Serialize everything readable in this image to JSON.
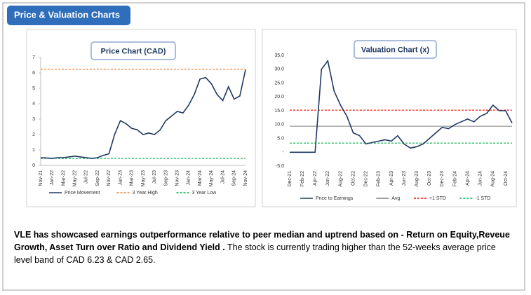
{
  "header": {
    "title": "Price & Valuation Charts"
  },
  "chart_data": [
    {
      "type": "line",
      "title": "Price Chart (CAD)",
      "categories": [
        "Nov-21",
        null,
        "Jan-22",
        null,
        "Mar-22",
        null,
        "May-22",
        null,
        "Jul-22",
        null,
        "Sep-22",
        null,
        "Nov-22",
        null,
        "Jan-23",
        null,
        "Mar-23",
        null,
        "May-23",
        null,
        "Jul-23",
        null,
        "Sep-23",
        null,
        "Nov-23",
        null,
        "Jan-24",
        null,
        "Mar-24",
        null,
        "May-24",
        null,
        "Jul-24",
        null,
        "Sep-24",
        null,
        "Nov-24"
      ],
      "series": [
        {
          "name": "Price Movement",
          "color": "#1f3864",
          "values": [
            0.5,
            0.48,
            0.45,
            0.5,
            0.5,
            0.55,
            0.6,
            0.55,
            0.5,
            0.45,
            0.5,
            0.65,
            0.75,
            2.0,
            2.9,
            2.7,
            2.4,
            2.3,
            2.0,
            2.1,
            2.0,
            2.3,
            2.9,
            3.2,
            3.5,
            3.4,
            3.9,
            4.6,
            5.6,
            5.7,
            5.3,
            4.6,
            4.2,
            5.1,
            4.3,
            4.5,
            6.2
          ]
        }
      ],
      "reference_lines": [
        {
          "name": "3 Year High",
          "value": 6.23,
          "color": "#ed7d31",
          "dashed": true
        },
        {
          "name": "3 Year Low",
          "value": 0.45,
          "color": "#00b050",
          "dashed": true
        }
      ],
      "ylim": [
        0,
        7
      ],
      "yticks": [
        0,
        1,
        2,
        3,
        4,
        5,
        6,
        7
      ]
    },
    {
      "type": "line",
      "title": "Valuation Chart (x)",
      "categories": [
        "Dec-21",
        null,
        "Feb-22",
        null,
        "Apr-22",
        null,
        "Jun-22",
        null,
        "Aug-22",
        null,
        "Oct-22",
        null,
        "Dec-22",
        null,
        "Feb-23",
        null,
        "Apr-23",
        null,
        "Jun-23",
        null,
        "Aug-23",
        null,
        "Oct-23",
        null,
        "Dec-23",
        null,
        "Feb-24",
        null,
        "Apr-24",
        null,
        "Jun-24",
        null,
        "Aug-24",
        null,
        "Oct-24",
        null
      ],
      "series": [
        {
          "name": "Price to Earnings",
          "color": "#1f3864",
          "values": [
            0,
            0,
            0,
            0,
            0,
            30,
            33,
            22,
            17,
            13,
            7,
            6,
            3,
            3.5,
            4,
            4.5,
            4,
            6,
            3,
            1.5,
            2,
            3,
            5,
            7,
            9,
            8.5,
            10,
            11,
            12,
            11,
            13,
            14,
            17,
            15,
            15,
            10.5
          ]
        }
      ],
      "reference_lines": [
        {
          "name": "Avg",
          "value": 9.4,
          "color": "#7f7f7f",
          "dashed": false
        },
        {
          "name": "+1 STD",
          "value": 15.2,
          "color": "#ff0000",
          "dashed": true
        },
        {
          "name": "-1 STD",
          "value": 3.3,
          "color": "#00b050",
          "dashed": true
        }
      ],
      "ylim": [
        -5,
        35
      ],
      "yticks": [
        {
          "value": -5,
          "label": "-5.0"
        },
        {
          "value": 0,
          "label": "-"
        },
        {
          "value": 5,
          "label": "5.0"
        },
        {
          "value": 10,
          "label": "10.0"
        },
        {
          "value": 15,
          "label": "15.0"
        },
        {
          "value": 20,
          "label": "20.0"
        },
        {
          "value": 25,
          "label": "25.0"
        },
        {
          "value": 30,
          "label": "30.0"
        },
        {
          "value": 35,
          "label": "35.0"
        }
      ]
    }
  ],
  "summary": {
    "bold": "VLE  has showcased earnings outperformance relative to peer median and uptrend based on - Return on Equity,Reveue Growth, Asset Turn over Ratio and Dividend Yield .",
    "text": " The stock is currently trading higher than the 52-weeks average price level band of CAD 6.23 & CAD 2.65."
  }
}
